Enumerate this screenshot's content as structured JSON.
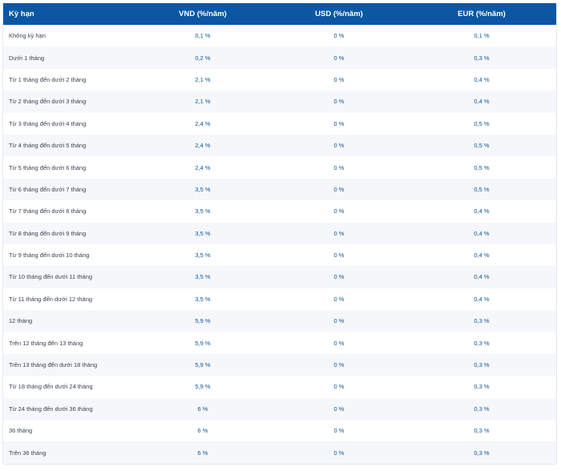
{
  "table": {
    "headers": {
      "term": "Kỳ hạn",
      "vnd": "VND (%/năm)",
      "usd": "USD (%/năm)",
      "eur": "EUR (%/năm)"
    },
    "rows": [
      {
        "term": "Không kỳ hạn",
        "vnd": "0,1 %",
        "usd": "0 %",
        "eur": "0,1 %"
      },
      {
        "term": "Dưới 1 tháng",
        "vnd": "0,2 %",
        "usd": "0 %",
        "eur": "0,3 %"
      },
      {
        "term": "Từ 1 tháng đến dưới 2 tháng",
        "vnd": "2,1 %",
        "usd": "0 %",
        "eur": "0,4 %"
      },
      {
        "term": "Từ 2 tháng đến dưới 3 tháng",
        "vnd": "2,1 %",
        "usd": "0 %",
        "eur": "0,4 %"
      },
      {
        "term": "Từ 3 tháng đến dưới 4 tháng",
        "vnd": "2,4 %",
        "usd": "0 %",
        "eur": "0,5 %"
      },
      {
        "term": "Từ 4 tháng đến dưới 5 tháng",
        "vnd": "2,4 %",
        "usd": "0 %",
        "eur": "0,5 %"
      },
      {
        "term": "Từ 5 tháng đến dưới 6 tháng",
        "vnd": "2,4 %",
        "usd": "0 %",
        "eur": "0,5 %"
      },
      {
        "term": "Từ 6 tháng đến dưới 7 tháng",
        "vnd": "3,5 %",
        "usd": "0 %",
        "eur": "0,5 %"
      },
      {
        "term": "Từ 7 tháng đến dưới 8 tháng",
        "vnd": "3,5 %",
        "usd": "0 %",
        "eur": "0,4 %"
      },
      {
        "term": "Từ 8 tháng đến dưới 9 tháng",
        "vnd": "3,5 %",
        "usd": "0 %",
        "eur": "0,4 %"
      },
      {
        "term": "Từ 9 tháng đến dưới 10 tháng",
        "vnd": "3,5 %",
        "usd": "0 %",
        "eur": "0,4 %"
      },
      {
        "term": "Từ 10 tháng đến dưới 11 tháng",
        "vnd": "3,5 %",
        "usd": "0 %",
        "eur": "0,4 %"
      },
      {
        "term": "Từ 11 tháng đến dưới 12 tháng",
        "vnd": "3,5 %",
        "usd": "0 %",
        "eur": "0,4 %"
      },
      {
        "term": "12 tháng",
        "vnd": "5,9 %",
        "usd": "0 %",
        "eur": "0,3 %"
      },
      {
        "term": "Trên 12 tháng đến 13 tháng",
        "vnd": "5,9 %",
        "usd": "0 %",
        "eur": "0,3 %"
      },
      {
        "term": "Trên 13 tháng đến dưới 18 tháng",
        "vnd": "5,9 %",
        "usd": "0 %",
        "eur": "0,3 %"
      },
      {
        "term": "Từ 18 tháng đến dưới 24 tháng",
        "vnd": "5,9 %",
        "usd": "0 %",
        "eur": "0,3 %"
      },
      {
        "term": "Từ 24 tháng đến dưới 36 tháng",
        "vnd": "6 %",
        "usd": "0 %",
        "eur": "0,3 %"
      },
      {
        "term": "36 tháng",
        "vnd": "6 %",
        "usd": "0 %",
        "eur": "0,3 %"
      },
      {
        "term": "Trên 36 tháng",
        "vnd": "6 %",
        "usd": "0 %",
        "eur": "0,3 %"
      }
    ]
  },
  "colors": {
    "header_bg": "#0b57a4",
    "header_text": "#ffffff",
    "rate_text": "#0c5496",
    "row_alt_bg": "#f5f7fa"
  }
}
